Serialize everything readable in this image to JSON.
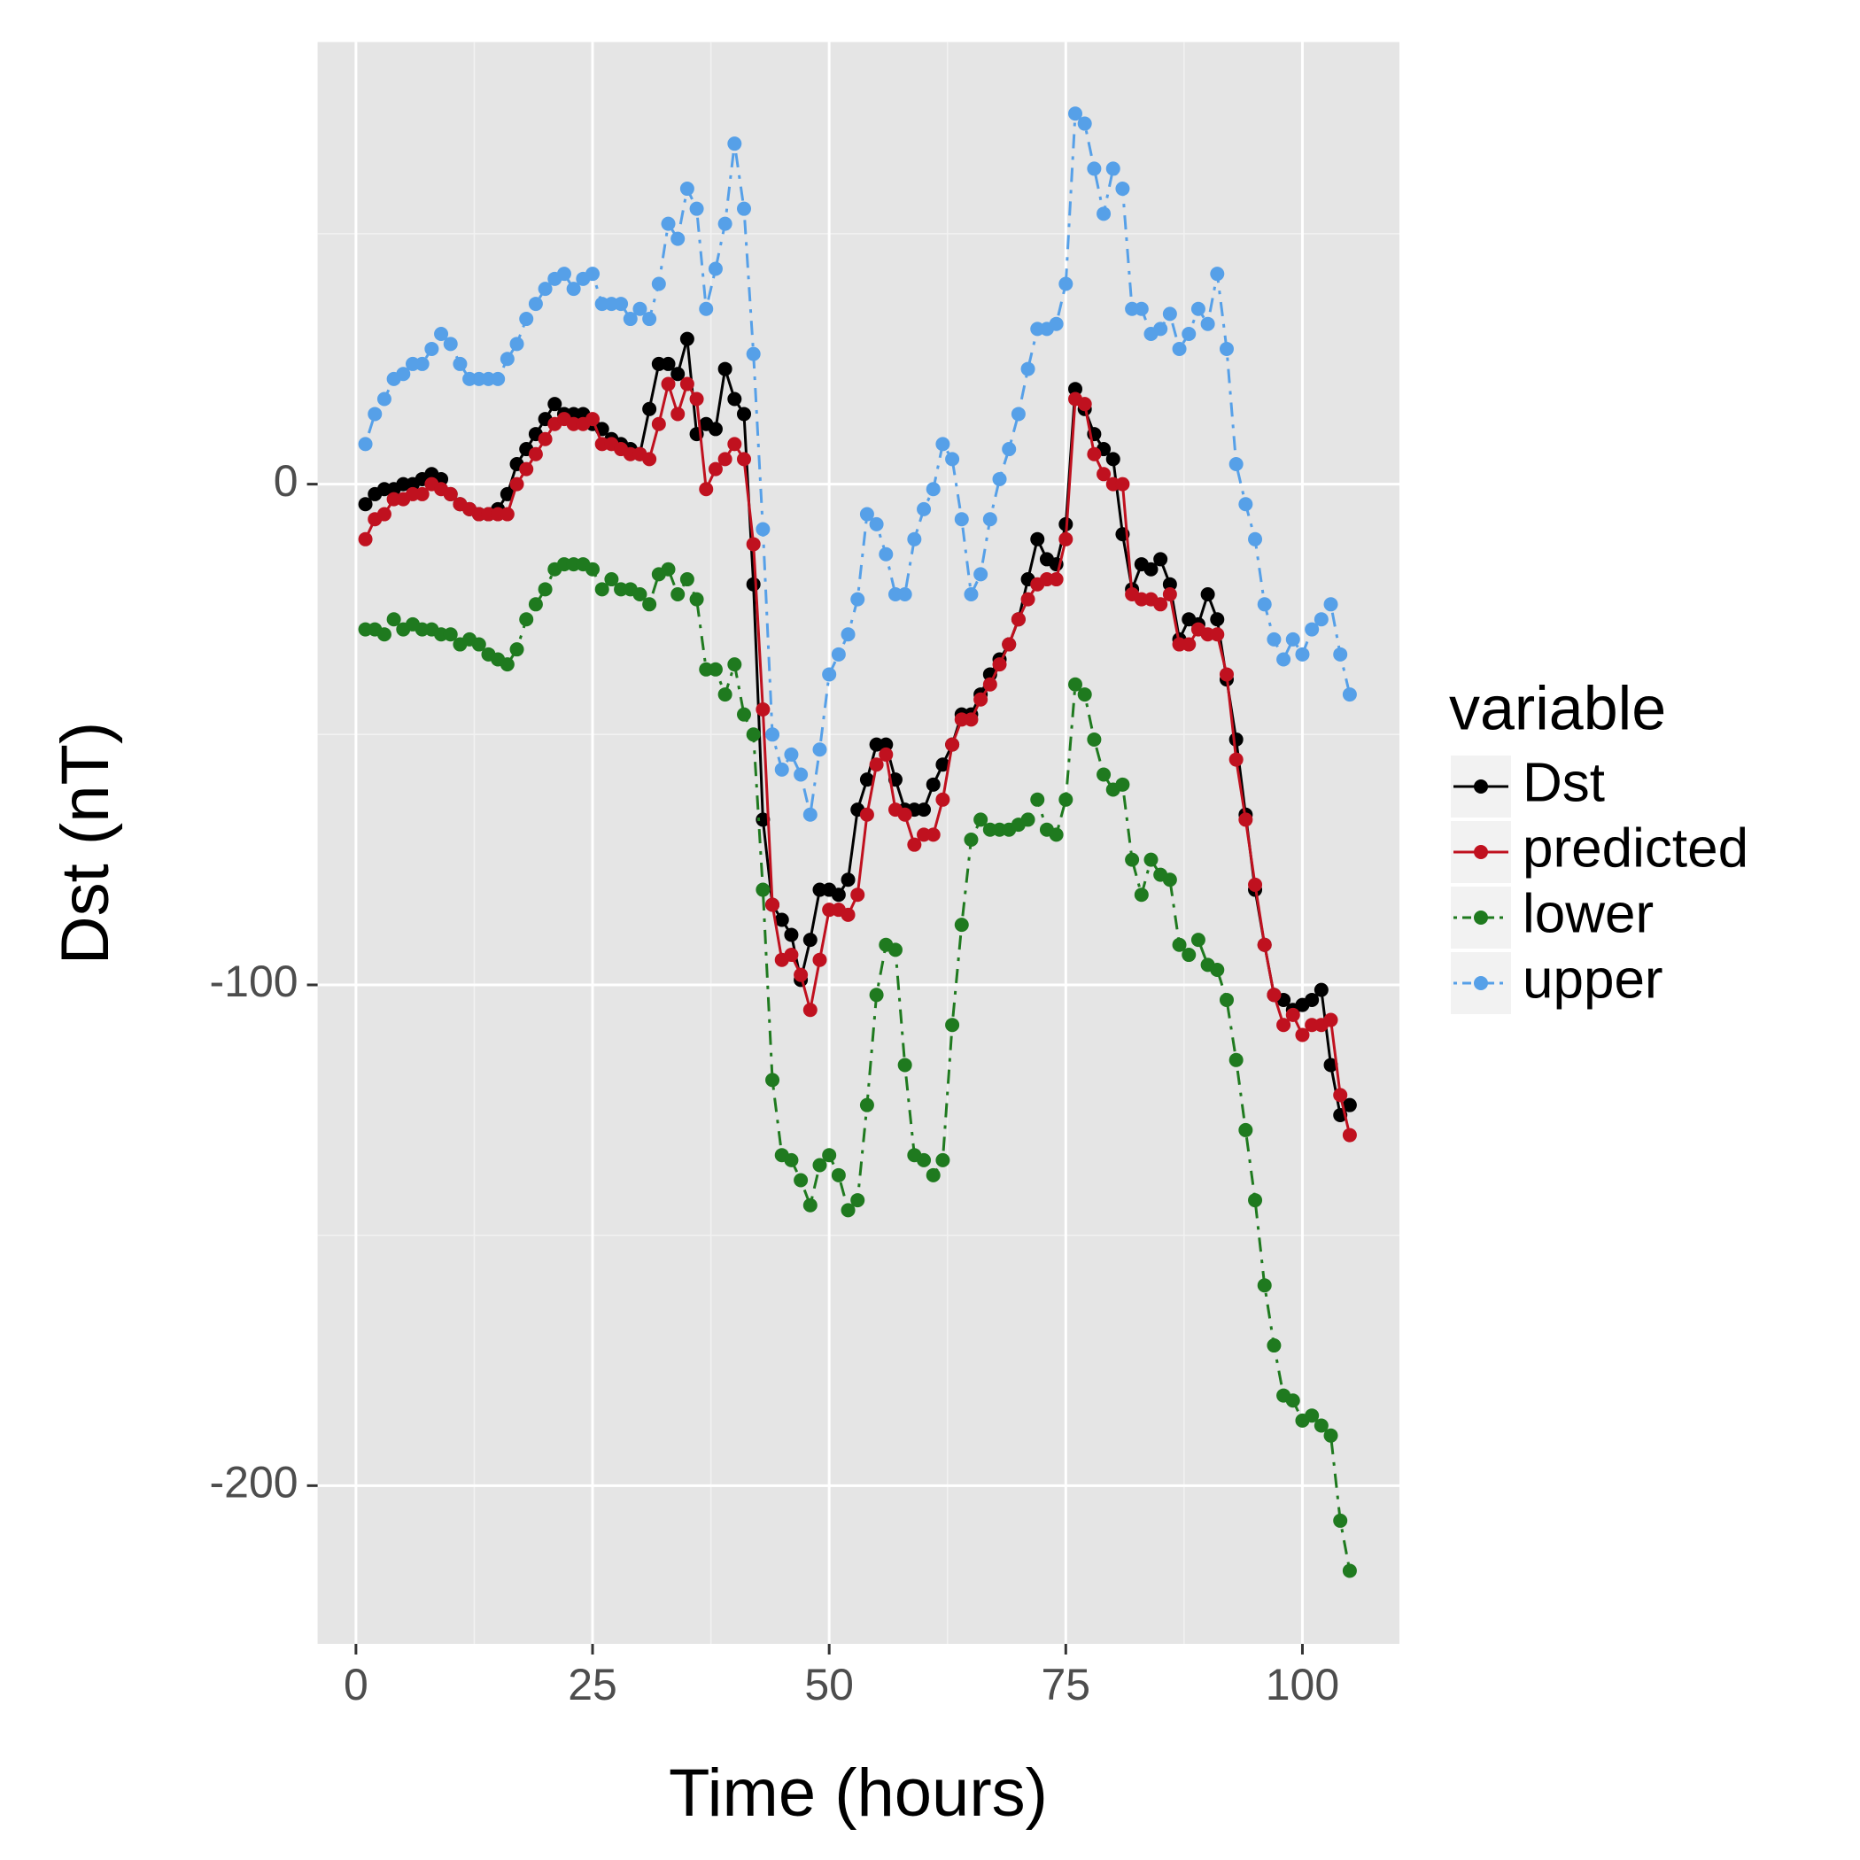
{
  "chart_data": {
    "type": "line",
    "x_label": "Time (hours)",
    "y_label": "Dst (nT)",
    "legend_title": "variable",
    "legend": "right",
    "grid": true,
    "xlim": [
      -4.05,
      110.25
    ],
    "ylim": [
      -231.6,
      88.3
    ],
    "xticks": [
      0,
      25,
      50,
      75,
      100
    ],
    "yticks": [
      -200,
      -100,
      0
    ],
    "x": [
      1,
      2,
      3,
      4,
      5,
      6,
      7,
      8,
      9,
      10,
      11,
      12,
      13,
      14,
      15,
      16,
      17,
      18,
      19,
      20,
      21,
      22,
      23,
      24,
      25,
      26,
      27,
      28,
      29,
      30,
      31,
      32,
      33,
      34,
      35,
      36,
      37,
      38,
      39,
      40,
      41,
      42,
      43,
      44,
      45,
      46,
      47,
      48,
      49,
      50,
      51,
      52,
      53,
      54,
      55,
      56,
      57,
      58,
      59,
      60,
      61,
      62,
      63,
      64,
      65,
      66,
      67,
      68,
      69,
      70,
      71,
      72,
      73,
      74,
      75,
      76,
      77,
      78,
      79,
      80,
      81,
      82,
      83,
      84,
      85,
      86,
      87,
      88,
      89,
      90,
      91,
      92,
      93,
      94,
      95,
      96,
      97,
      98,
      99,
      100,
      101,
      102,
      103,
      104,
      105
    ],
    "series": [
      {
        "name": "Dst",
        "color": "#000000",
        "linestyle": "solid",
        "values": [
          -4,
          -2,
          -1,
          -1,
          0,
          0,
          1,
          2,
          1,
          -2,
          -4,
          -5,
          -6,
          -6,
          -5,
          -2,
          4,
          7,
          10,
          13,
          16,
          14,
          14,
          14,
          12,
          11,
          9,
          8,
          7,
          6,
          15,
          24,
          24,
          22,
          29,
          10,
          12,
          11,
          23,
          17,
          14,
          -20,
          -67,
          -84,
          -87,
          -90,
          -99,
          -91,
          -81,
          -81,
          -82,
          -79,
          -65,
          -59,
          -52,
          -52,
          -59,
          -65,
          -65,
          -65,
          -60,
          -56,
          -52,
          -46,
          -46,
          -42,
          -38,
          -35,
          -32,
          -27,
          -19,
          -11,
          -15,
          -16,
          -8,
          19,
          15,
          10,
          7,
          5,
          -10,
          -21,
          -16,
          -17,
          -15,
          -20,
          -31,
          -27,
          -28,
          -22,
          -27,
          -39,
          -51,
          -66,
          -81,
          -92,
          -102,
          -103,
          -105,
          -104,
          -103,
          -101,
          -116,
          -126,
          -124
        ]
      },
      {
        "name": "predicted",
        "color": "#c0111f",
        "linestyle": "solid",
        "values": [
          -11,
          -7,
          -6,
          -3,
          -3,
          -2,
          -2,
          0,
          -1,
          -2,
          -4,
          -5,
          -6,
          -6,
          -6,
          -6,
          0,
          3,
          6,
          9,
          12,
          13,
          12,
          12,
          13,
          8,
          8,
          7,
          6,
          6,
          5,
          12,
          20,
          14,
          20,
          17,
          -1,
          3,
          5,
          8,
          5,
          -12,
          -45,
          -84,
          -95,
          -94,
          -98,
          -105,
          -95,
          -85,
          -85,
          -86,
          -82,
          -66,
          -56,
          -54,
          -65,
          -66,
          -72,
          -70,
          -70,
          -63,
          -52,
          -47,
          -47,
          -43,
          -40,
          -36,
          -32,
          -27,
          -23,
          -20,
          -19,
          -19,
          -11,
          17,
          16,
          6,
          2,
          0,
          0,
          -22,
          -23,
          -23,
          -24,
          -22,
          -32,
          -32,
          -29,
          -30,
          -30,
          -38,
          -55,
          -67,
          -80,
          -92,
          -102,
          -108,
          -106,
          -110,
          -108,
          -108,
          -107,
          -122,
          -130
        ]
      },
      {
        "name": "lower",
        "color": "#1f7a1f",
        "linestyle": "dotdash",
        "values": [
          -29,
          -29,
          -30,
          -27,
          -29,
          -28,
          -29,
          -29,
          -30,
          -30,
          -32,
          -31,
          -32,
          -34,
          -35,
          -36,
          -33,
          -27,
          -24,
          -21,
          -17,
          -16,
          -16,
          -16,
          -17,
          -21,
          -19,
          -21,
          -21,
          -22,
          -24,
          -18,
          -17,
          -22,
          -19,
          -23,
          -37,
          -37,
          -42,
          -36,
          -46,
          -50,
          -81,
          -119,
          -134,
          -135,
          -139,
          -144,
          -136,
          -134,
          -138,
          -145,
          -143,
          -124,
          -102,
          -92,
          -93,
          -116,
          -134,
          -135,
          -138,
          -135,
          -108,
          -88,
          -71,
          -67,
          -69,
          -69,
          -69,
          -68,
          -67,
          -63,
          -69,
          -70,
          -63,
          -40,
          -42,
          -51,
          -58,
          -61,
          -60,
          -75,
          -82,
          -75,
          -78,
          -79,
          -92,
          -94,
          -91,
          -96,
          -97,
          -103,
          -115,
          -129,
          -143,
          -160,
          -172,
          -182,
          -183,
          -187,
          -186,
          -188,
          -190,
          -207,
          -217
        ]
      },
      {
        "name": "upper",
        "color": "#56a0e8",
        "linestyle": "dotdash",
        "values": [
          8,
          14,
          17,
          21,
          22,
          24,
          24,
          27,
          30,
          28,
          24,
          21,
          21,
          21,
          21,
          25,
          28,
          33,
          36,
          39,
          41,
          42,
          39,
          41,
          42,
          36,
          36,
          36,
          33,
          35,
          33,
          40,
          52,
          49,
          59,
          55,
          35,
          43,
          52,
          68,
          55,
          26,
          -9,
          -50,
          -57,
          -54,
          -58,
          -66,
          -53,
          -38,
          -34,
          -30,
          -23,
          -6,
          -8,
          -14,
          -22,
          -22,
          -11,
          -5,
          -1,
          8,
          5,
          -7,
          -22,
          -18,
          -7,
          1,
          7,
          14,
          23,
          31,
          31,
          32,
          40,
          74,
          72,
          63,
          54,
          63,
          59,
          35,
          35,
          30,
          31,
          34,
          27,
          30,
          35,
          32,
          42,
          27,
          4,
          -4,
          -11,
          -24,
          -31,
          -35,
          -31,
          -34,
          -29,
          -27,
          -24,
          -34,
          -42
        ]
      }
    ]
  }
}
